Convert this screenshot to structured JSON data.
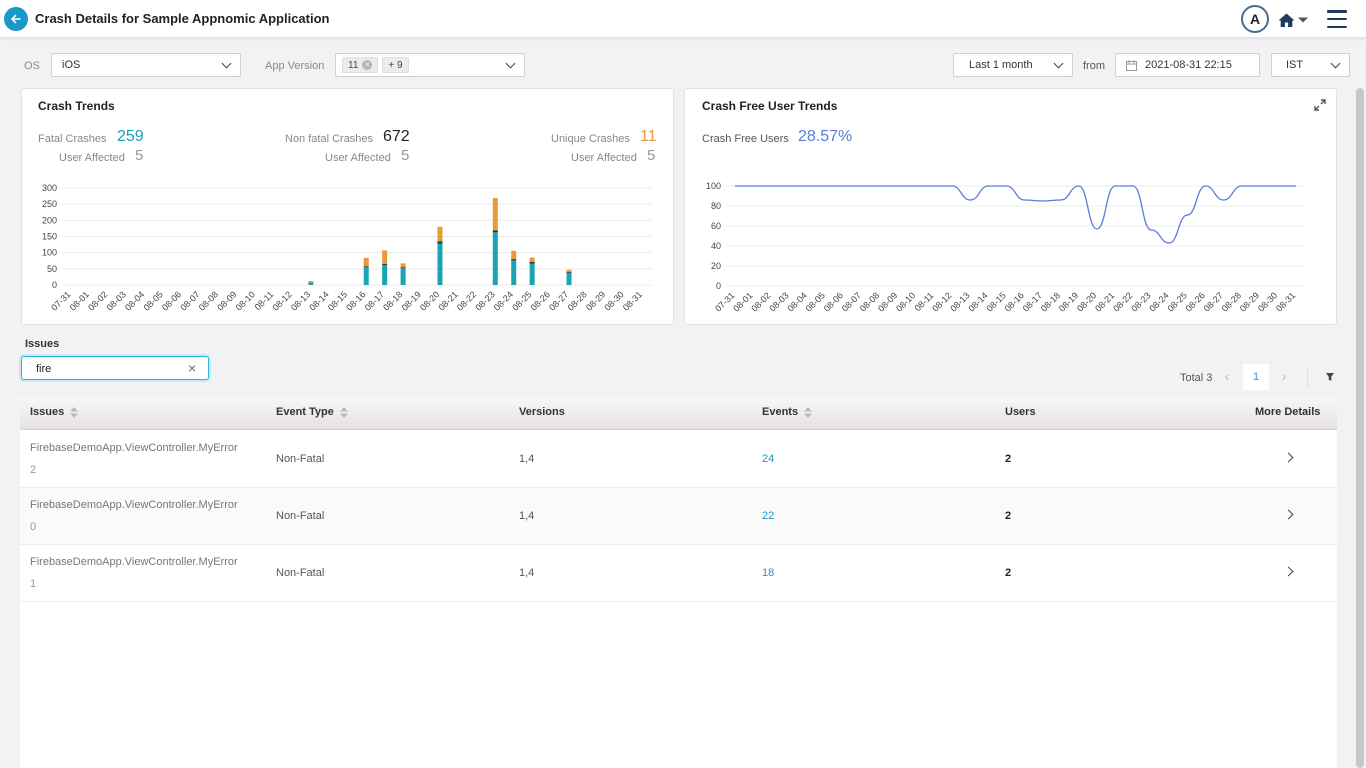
{
  "header": {
    "title": "Crash Details for Sample Appnomic Application",
    "avatar_letter": "A"
  },
  "filters": {
    "os_label": "OS",
    "os_value": "iOS",
    "app_version_label": "App Version",
    "app_version_tag": "11",
    "app_version_more": "+ 9",
    "range_value": "Last 1 month",
    "from_label": "from",
    "date_value": "2021-08-31 22:15",
    "tz_value": "IST"
  },
  "crash_trends": {
    "title": "Crash Trends",
    "fatal": {
      "label": "Fatal Crashes",
      "value": "259",
      "users_label": "User Affected",
      "users": "5"
    },
    "nonfatal": {
      "label": "Non fatal Crashes",
      "value": "672",
      "users_label": "User Affected",
      "users": "5"
    },
    "unique": {
      "label": "Unique Crashes",
      "value": "11",
      "users_label": "User Affected",
      "users": "5"
    }
  },
  "crash_free": {
    "title": "Crash Free User Trends",
    "label": "Crash Free Users",
    "value": "28.57%"
  },
  "chart_data": [
    {
      "type": "bar",
      "title": "Crash Trends",
      "categories": [
        "07-31",
        "08-01",
        "08-02",
        "08-03",
        "08-04",
        "08-05",
        "08-06",
        "08-07",
        "08-08",
        "08-09",
        "08-10",
        "08-11",
        "08-12",
        "08-13",
        "08-14",
        "08-15",
        "08-16",
        "08-17",
        "08-18",
        "08-19",
        "08-20",
        "08-21",
        "08-22",
        "08-23",
        "08-24",
        "08-25",
        "08-26",
        "08-27",
        "08-28",
        "08-29",
        "08-30",
        "08-31"
      ],
      "stacked": true,
      "ylim": [
        0,
        300
      ],
      "yticks": [
        0,
        50,
        100,
        150,
        200,
        250,
        300
      ],
      "grid": true,
      "series": [
        {
          "color": "#1aa3b3",
          "values": [
            0,
            0,
            0,
            0,
            0,
            0,
            0,
            0,
            0,
            0,
            0,
            0,
            0,
            7,
            0,
            0,
            55,
            62,
            52,
            0,
            128,
            0,
            0,
            163,
            76,
            66,
            0,
            38,
            0,
            0,
            0,
            0
          ]
        },
        {
          "color": "#1a2c4c",
          "values": [
            0,
            0,
            0,
            0,
            0,
            0,
            0,
            0,
            0,
            0,
            0,
            0,
            0,
            1,
            0,
            0,
            3,
            3,
            3,
            0,
            7,
            0,
            0,
            6,
            4,
            5,
            0,
            3,
            0,
            0,
            0,
            0
          ]
        },
        {
          "color": "#e59c38",
          "values": [
            0,
            0,
            0,
            0,
            0,
            0,
            0,
            0,
            0,
            0,
            0,
            0,
            0,
            4,
            0,
            0,
            26,
            42,
            12,
            0,
            45,
            0,
            0,
            100,
            26,
            14,
            0,
            6,
            0,
            0,
            0,
            0
          ]
        }
      ]
    },
    {
      "type": "line",
      "title": "Crash Free User Trends",
      "categories": [
        "07-31",
        "08-01",
        "08-02",
        "08-03",
        "08-04",
        "08-05",
        "08-06",
        "08-07",
        "08-08",
        "08-09",
        "08-10",
        "08-11",
        "08-12",
        "08-13",
        "08-14",
        "08-15",
        "08-16",
        "08-17",
        "08-18",
        "08-19",
        "08-20",
        "08-21",
        "08-22",
        "08-23",
        "08-24",
        "08-25",
        "08-26",
        "08-27",
        "08-28",
        "08-29",
        "08-30",
        "08-31"
      ],
      "ylim": [
        0,
        100
      ],
      "yticks": [
        0,
        20,
        40,
        60,
        80,
        100
      ],
      "grid": true,
      "series": [
        {
          "color": "#5b7bd5",
          "values": [
            100,
            100,
            100,
            100,
            100,
            100,
            100,
            100,
            100,
            100,
            100,
            100,
            100,
            86,
            100,
            100,
            86,
            85,
            86,
            100,
            57,
            100,
            100,
            56,
            43,
            71,
            100,
            86,
            100,
            100,
            100,
            100
          ]
        }
      ]
    }
  ],
  "issues": {
    "label": "Issues",
    "search_value": "fire",
    "total_label": "Total 3",
    "page": "1",
    "columns": [
      "Issues",
      "Event Type",
      "Versions",
      "Events",
      "Users",
      "More Details"
    ],
    "rows": [
      {
        "name": "FirebaseDemoApp.ViewController.MyError",
        "code": "2",
        "type": "Non-Fatal",
        "versions": "1,4",
        "events": "24",
        "users": "2"
      },
      {
        "name": "FirebaseDemoApp.ViewController.MyError",
        "code": "0",
        "type": "Non-Fatal",
        "versions": "1,4",
        "events": "22",
        "users": "2"
      },
      {
        "name": "FirebaseDemoApp.ViewController.MyError",
        "code": "1",
        "type": "Non-Fatal",
        "versions": "1,4",
        "events": "18",
        "users": "2"
      }
    ]
  },
  "colors": {
    "accent": "#1898c8",
    "fatal": "#1aa3b3",
    "unique": "#e59c38",
    "crash_free": "#5b7bd5",
    "nav": "#1f3a5a"
  },
  "icons": {
    "back": "arrow-left-icon",
    "home": "home-icon",
    "menu": "hamburger-icon",
    "calendar": "calendar-icon",
    "expand": "expand-icon",
    "filter": "filter-icon",
    "clear": "close-icon"
  }
}
